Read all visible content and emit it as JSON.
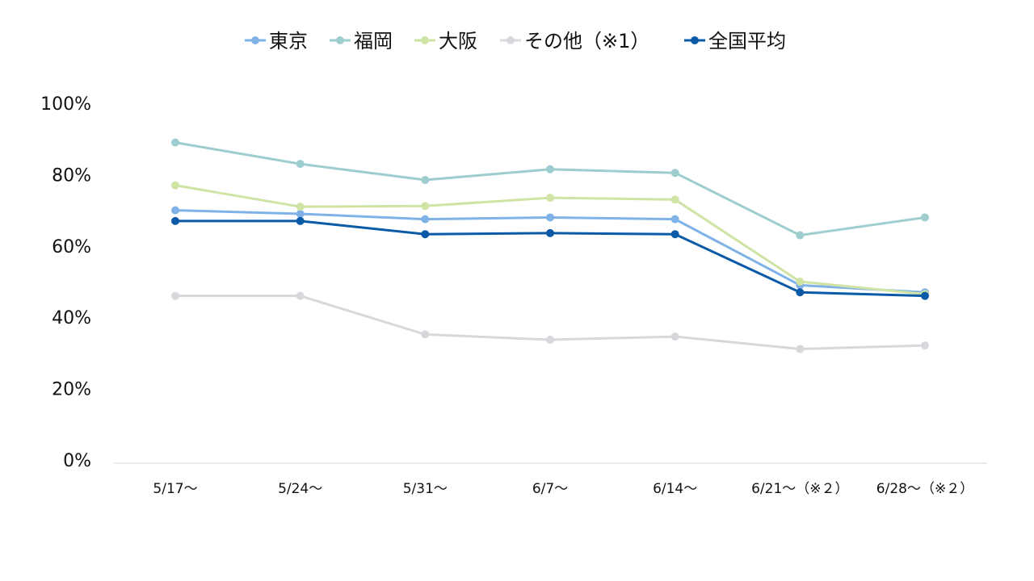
{
  "chart_data": {
    "type": "line",
    "title": "",
    "xlabel": "",
    "ylabel": "",
    "ylim": [
      0,
      100
    ],
    "yticks": [
      "0%",
      "20%",
      "40%",
      "60%",
      "80%",
      "100%"
    ],
    "categories": [
      "5/17～",
      "5/24～",
      "5/31～",
      "6/7～",
      "6/14～",
      "6/21～（※２）",
      "6/28～（※２）"
    ],
    "legend_position": "top",
    "series": [
      {
        "name": "東京",
        "color": "#7fb2e6",
        "values": [
          70,
          69,
          67.5,
          68,
          67.5,
          49,
          47
        ]
      },
      {
        "name": "福岡",
        "color": "#9ecdd0",
        "values": [
          89,
          83,
          78.5,
          81.5,
          80.5,
          63,
          68
        ]
      },
      {
        "name": "大阪",
        "color": "#cfe3a5",
        "values": [
          77,
          71,
          71.2,
          73.5,
          73,
          50,
          46.5
        ]
      },
      {
        "name": "その他（※1）",
        "color": "#d6d8dc",
        "values": [
          46,
          46,
          35.2,
          33.7,
          34.6,
          31.1,
          32.1
        ]
      },
      {
        "name": "全国平均",
        "color": "#0b5aa8",
        "values": [
          67,
          67,
          63.3,
          63.6,
          63.3,
          47,
          46
        ]
      }
    ]
  }
}
